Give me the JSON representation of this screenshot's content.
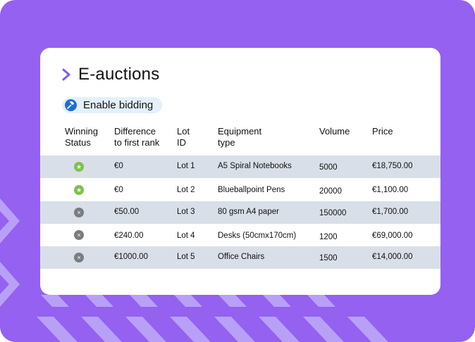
{
  "title": "E-auctions",
  "enable_bidding_label": "Enable bidding",
  "columns": [
    {
      "line1": "Winning",
      "line2": "Status"
    },
    {
      "line1": "Difference",
      "line2": "to first rank"
    },
    {
      "line1": "Lot",
      "line2": "ID"
    },
    {
      "line1": "Equipment",
      "line2": "type"
    },
    {
      "line1": "Volume",
      "line2": ""
    },
    {
      "line1": "Price",
      "line2": ""
    }
  ],
  "rows": [
    {
      "status": "winning",
      "status_icon": "star-icon",
      "difference": "€0",
      "lot": "Lot 1",
      "equipment": "A5 Spiral Notebooks",
      "volume": "5000",
      "price": "€18,750.00"
    },
    {
      "status": "winning",
      "status_icon": "star-icon",
      "difference": "€0",
      "lot": "Lot 2",
      "equipment": "Blueballpoint Pens",
      "volume": "20000",
      "price": "€1,100.00"
    },
    {
      "status": "losing",
      "status_icon": "x-icon",
      "difference": "€50.00",
      "lot": "Lot 3",
      "equipment": "80 gsm A4 paper",
      "volume": "150000",
      "price": "€1,700.00"
    },
    {
      "status": "losing",
      "status_icon": "x-icon",
      "difference": "€240.00",
      "lot": "Lot 4",
      "equipment": "Desks (50cmx170cm)",
      "volume": "1200",
      "price": "€69,000.00"
    },
    {
      "status": "losing",
      "status_icon": "x-icon",
      "difference": "€1000.00",
      "lot": "Lot 5",
      "equipment": "Office Chairs",
      "volume": "1500",
      "price": "€14,000.00"
    }
  ],
  "colors": {
    "background": "#9461f0",
    "card": "#ffffff",
    "row_shade": "#d9dfe8",
    "winning": "#7cc24a",
    "losing": "#7a7c80",
    "accent": "#1f6fd1"
  }
}
